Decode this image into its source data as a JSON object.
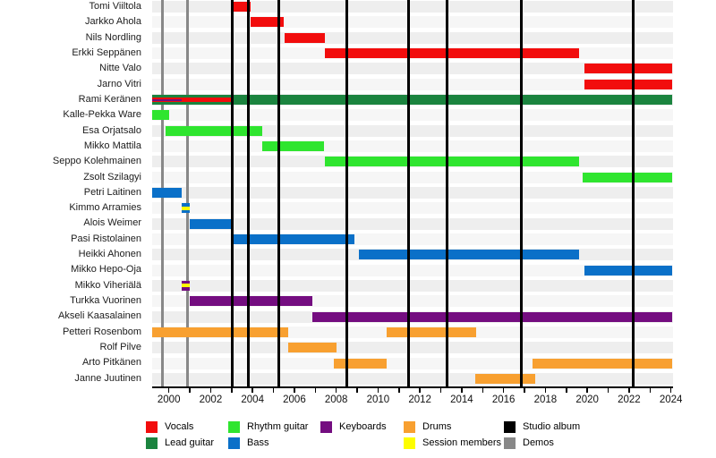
{
  "chart_data": {
    "type": "bar",
    "subtype": "band-members-timeline-gantt",
    "title": "",
    "xlabel": "",
    "ylabel": "",
    "xlim": [
      1999.2,
      2024.1
    ],
    "x_tick_labels": [
      2000,
      2002,
      2004,
      2006,
      2008,
      2010,
      2012,
      2014,
      2016,
      2018,
      2020,
      2022,
      2024
    ],
    "x_minor_tick_every": 1,
    "colors": {
      "vocals": "#f20d0d",
      "lead_guitar": "#1b843f",
      "rhythm_guitar": "#2fe52f",
      "bass": "#0a70c8",
      "keyboards": "#740d80",
      "drums": "#f8a030",
      "session": "#fdfd00",
      "studio_album": "#000000",
      "demos": "#888888"
    },
    "members": [
      {
        "name": "Tomi Viiltola",
        "bars": [
          {
            "role": "vocals",
            "start": 2003.05,
            "end": 2003.9,
            "shape": "full"
          }
        ]
      },
      {
        "name": "Jarkko Ahola",
        "bars": [
          {
            "role": "vocals",
            "start": 2003.9,
            "end": 2005.5,
            "shape": "full"
          }
        ]
      },
      {
        "name": "Nils Nordling",
        "bars": [
          {
            "role": "vocals",
            "start": 2005.55,
            "end": 2007.45,
            "shape": "full"
          }
        ]
      },
      {
        "name": "Erkki Seppänen",
        "bars": [
          {
            "role": "vocals",
            "start": 2007.45,
            "end": 2019.6,
            "shape": "full"
          }
        ]
      },
      {
        "name": "Nitte Valo",
        "bars": [
          {
            "role": "vocals",
            "start": 2019.85,
            "end": 2024.05,
            "shape": "full"
          }
        ]
      },
      {
        "name": "Jarno Vitri",
        "bars": [
          {
            "role": "vocals",
            "start": 2019.85,
            "end": 2024.05,
            "shape": "full"
          }
        ]
      },
      {
        "name": "Rami Keränen",
        "bars": [
          {
            "role": "lead_guitar",
            "start": 1999.2,
            "end": 2024.05,
            "shape": "full"
          },
          {
            "role": "vocals",
            "start": 1999.2,
            "end": 2003.05,
            "shape": "wide-stripe"
          },
          {
            "role": "keyboards",
            "start": 1999.2,
            "end": 2000.6,
            "shape": "thin-stripe"
          }
        ]
      },
      {
        "name": "Kalle-Pekka Ware",
        "bars": [
          {
            "role": "rhythm_guitar",
            "start": 1999.2,
            "end": 2000.0,
            "shape": "full"
          }
        ]
      },
      {
        "name": "Esa Orjatsalo",
        "bars": [
          {
            "role": "rhythm_guitar",
            "start": 1999.85,
            "end": 2004.45,
            "shape": "full"
          }
        ]
      },
      {
        "name": "Mikko Mattila",
        "bars": [
          {
            "role": "rhythm_guitar",
            "start": 2004.45,
            "end": 2007.4,
            "shape": "full"
          }
        ]
      },
      {
        "name": "Seppo Kolehmainen",
        "bars": [
          {
            "role": "rhythm_guitar",
            "start": 2007.45,
            "end": 2019.6,
            "shape": "full"
          }
        ]
      },
      {
        "name": "Zsolt Szilagyi",
        "bars": [
          {
            "role": "rhythm_guitar",
            "start": 2019.8,
            "end": 2024.05,
            "shape": "full"
          }
        ]
      },
      {
        "name": "Petri Laitinen",
        "bars": [
          {
            "role": "bass",
            "start": 1999.2,
            "end": 2000.6,
            "shape": "full"
          }
        ]
      },
      {
        "name": "Kimmo Arramies",
        "bars": [
          {
            "role": "bass",
            "start": 2000.6,
            "end": 2001.0,
            "shape": "full"
          },
          {
            "role": "session",
            "start": 2000.6,
            "end": 2001.0,
            "shape": "session-stripe"
          }
        ]
      },
      {
        "name": "Alois Weimer",
        "bars": [
          {
            "role": "bass",
            "start": 2001.0,
            "end": 2003.05,
            "shape": "full"
          }
        ]
      },
      {
        "name": "Pasi Ristolainen",
        "bars": [
          {
            "role": "bass",
            "start": 2003.05,
            "end": 2008.85,
            "shape": "full"
          }
        ]
      },
      {
        "name": "Heikki Ahonen",
        "bars": [
          {
            "role": "bass",
            "start": 2009.1,
            "end": 2019.6,
            "shape": "full"
          }
        ]
      },
      {
        "name": "Mikko Hepo-Oja",
        "bars": [
          {
            "role": "bass",
            "start": 2019.85,
            "end": 2024.05,
            "shape": "full"
          }
        ]
      },
      {
        "name": "Mikko Viheriälä",
        "bars": [
          {
            "role": "keyboards",
            "start": 2000.6,
            "end": 2001.0,
            "shape": "full"
          },
          {
            "role": "session",
            "start": 2000.6,
            "end": 2001.0,
            "shape": "session-stripe"
          }
        ]
      },
      {
        "name": "Turkka Vuorinen",
        "bars": [
          {
            "role": "keyboards",
            "start": 2001.0,
            "end": 2006.85,
            "shape": "full"
          }
        ]
      },
      {
        "name": "Akseli Kaasalainen",
        "bars": [
          {
            "role": "keyboards",
            "start": 2006.85,
            "end": 2024.05,
            "shape": "full"
          }
        ]
      },
      {
        "name": "Petteri Rosenbom",
        "bars": [
          {
            "role": "drums",
            "start": 1999.2,
            "end": 2005.7,
            "shape": "full"
          },
          {
            "role": "drums",
            "start": 2010.4,
            "end": 2014.7,
            "shape": "full"
          }
        ]
      },
      {
        "name": "Rolf Pilve",
        "bars": [
          {
            "role": "drums",
            "start": 2005.7,
            "end": 2008.0,
            "shape": "full"
          }
        ]
      },
      {
        "name": "Arto Pitkänen",
        "bars": [
          {
            "role": "drums",
            "start": 2007.9,
            "end": 2010.4,
            "shape": "full"
          },
          {
            "role": "drums",
            "start": 2017.4,
            "end": 2024.05,
            "shape": "full"
          }
        ]
      },
      {
        "name": "Janne Juutinen",
        "bars": [
          {
            "role": "drums",
            "start": 2014.65,
            "end": 2017.5,
            "shape": "full"
          }
        ]
      }
    ],
    "events": {
      "studio_albums": [
        2003.05,
        2003.8,
        2005.25,
        2008.5,
        2011.45,
        2013.3,
        2016.85,
        2022.2
      ],
      "demos": [
        1999.7,
        2000.9
      ]
    },
    "legend_columns": [
      [
        {
          "label": "Vocals",
          "color": "vocals"
        },
        {
          "label": "Lead guitar",
          "color": "lead_guitar"
        }
      ],
      [
        {
          "label": "Rhythm guitar",
          "color": "rhythm_guitar"
        },
        {
          "label": "Bass",
          "color": "bass"
        }
      ],
      [
        {
          "label": "Keyboards",
          "color": "keyboards"
        }
      ],
      [
        {
          "label": "Drums",
          "color": "drums"
        },
        {
          "label": "Session members",
          "color": "session"
        }
      ],
      [
        {
          "label": "Studio album",
          "color": "studio_album"
        },
        {
          "label": "Demos",
          "color": "demos"
        }
      ]
    ]
  }
}
